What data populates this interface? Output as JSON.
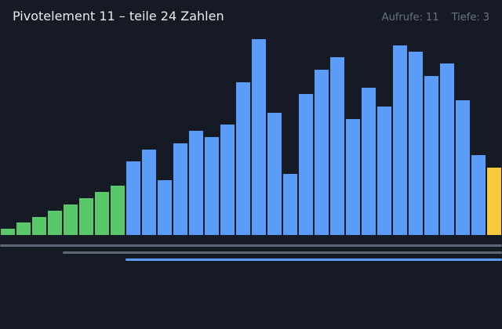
{
  "header": {
    "title": "Pivotelement 11 – teile 24 Zahlen",
    "calls_label": "Aufrufe:",
    "calls_value": "11",
    "depth_label": "Tiefe:",
    "depth_value": "3"
  },
  "colors": {
    "background": "#151a24",
    "sorted": "#5ac86a",
    "partition": "#5b9cf8",
    "pivot": "#fbc93e",
    "range_outer": "#5f6675",
    "range_active": "#5b9cf8"
  },
  "visualization": {
    "max_value": 64,
    "values": [
      2,
      4,
      6,
      8,
      10,
      12,
      14,
      16,
      24,
      28,
      18,
      30,
      34,
      32,
      36,
      50,
      64,
      40,
      20,
      46,
      54,
      58,
      38,
      48,
      42,
      62,
      60,
      52,
      56,
      44,
      26,
      22
    ],
    "states": [
      "sorted",
      "sorted",
      "sorted",
      "sorted",
      "sorted",
      "sorted",
      "sorted",
      "sorted",
      "partition",
      "partition",
      "partition",
      "partition",
      "partition",
      "partition",
      "partition",
      "partition",
      "partition",
      "partition",
      "partition",
      "partition",
      "partition",
      "partition",
      "partition",
      "partition",
      "partition",
      "partition",
      "partition",
      "partition",
      "partition",
      "partition",
      "partition",
      "pivot"
    ]
  },
  "recursion_ranges": [
    {
      "from": 0,
      "to": 31,
      "state": "outer"
    },
    {
      "from": 4,
      "to": 31,
      "state": "outer"
    },
    {
      "from": 8,
      "to": 31,
      "state": "active"
    }
  ]
}
